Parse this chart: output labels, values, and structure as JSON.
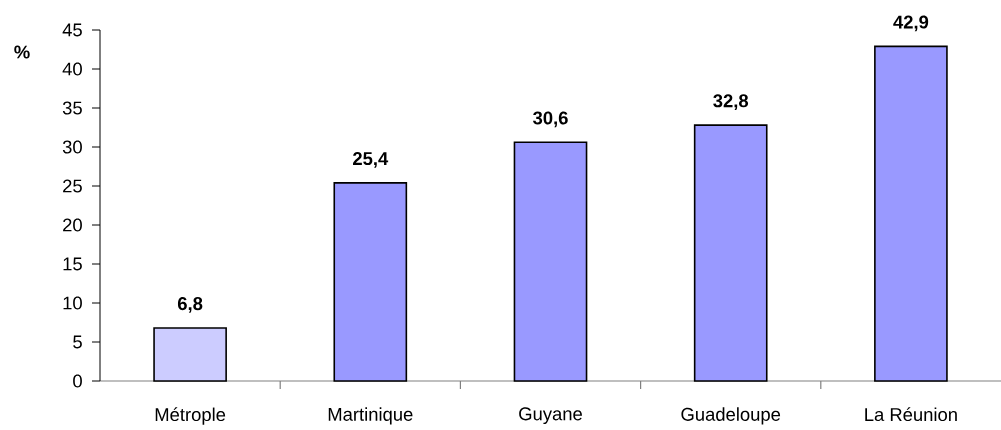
{
  "chart_data": {
    "type": "bar",
    "ylabel": "%",
    "categories": [
      "Métrople",
      "Martinique",
      "Guyane",
      "Guadeloupe",
      "La Réunion"
    ],
    "values": [
      6.8,
      25.4,
      30.6,
      32.8,
      42.9
    ],
    "colors": [
      "#ccccff",
      "#9999ff",
      "#9999ff",
      "#9999ff",
      "#9999ff"
    ],
    "value_labels": [
      "6,8",
      "25,4",
      "30,6",
      "32,8",
      "42,9"
    ],
    "ylim": [
      0,
      45
    ],
    "yticks": [
      0,
      5,
      10,
      15,
      20,
      25,
      30,
      35,
      40,
      45
    ]
  }
}
